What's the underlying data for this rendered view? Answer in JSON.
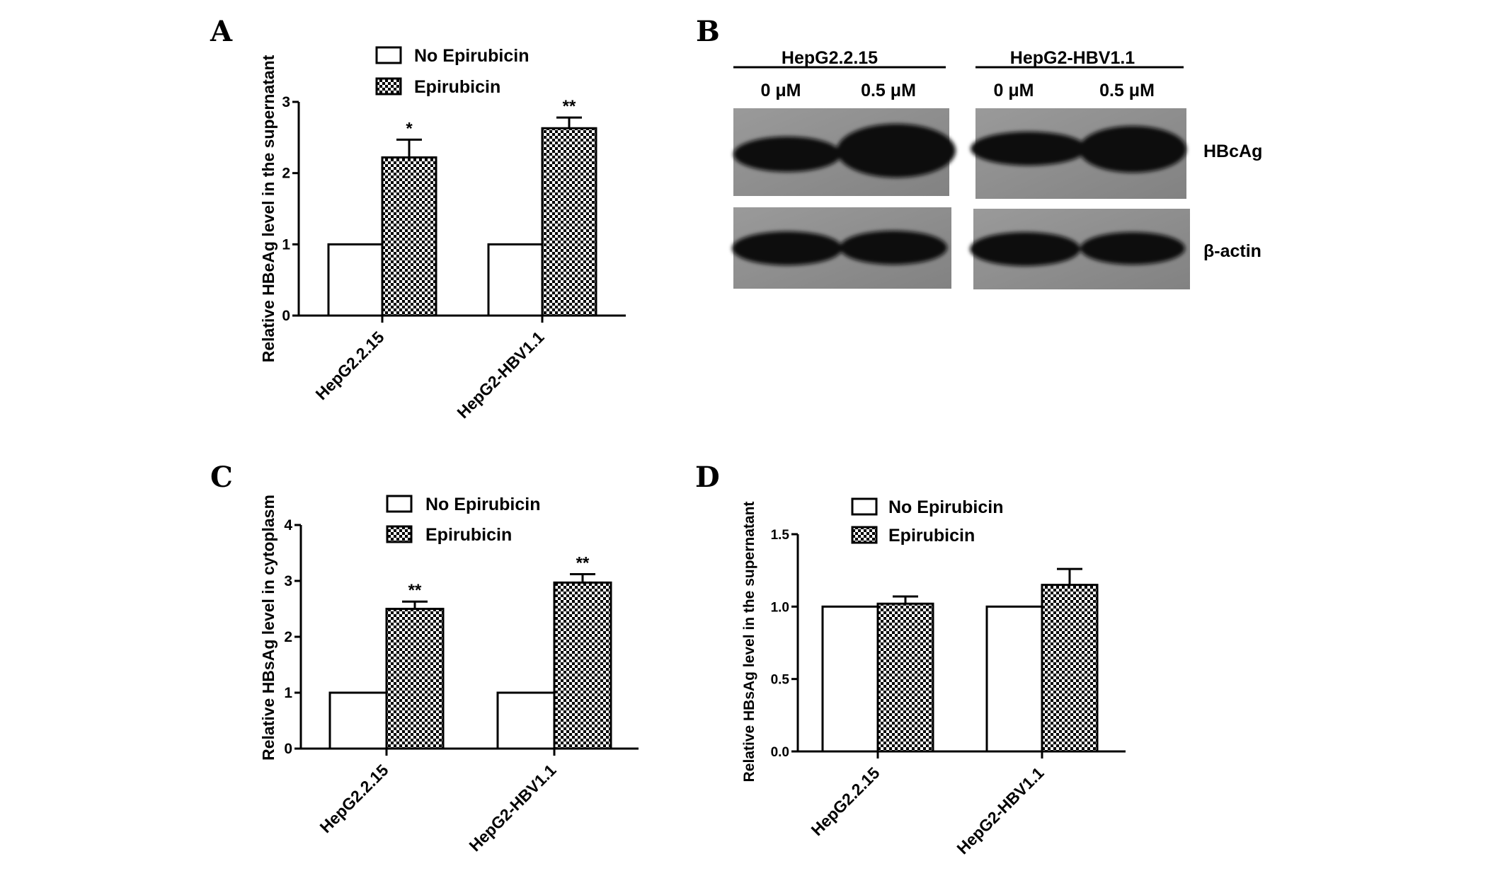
{
  "legend": {
    "control": "No Epirubicin",
    "treated": "Epirubicin"
  },
  "colors": {
    "ink": "#000000",
    "bar_fill_control": "#ffffff",
    "blot_background": "#8f8f8f",
    "blot_band": "#0c0c0c"
  },
  "chart_data": [
    {
      "panel": "A",
      "type": "bar",
      "ylabel": "Relative HBeAg level in the supernatant",
      "categories": [
        "HepG2.2.15",
        "HepG2-HBV1.1"
      ],
      "ylim": [
        0,
        3
      ],
      "yticks": [
        "0",
        "1",
        "2",
        "3"
      ],
      "series": [
        {
          "name": "No Epirubicin",
          "values": [
            1.0,
            1.0
          ]
        },
        {
          "name": "Epirubicin",
          "values": [
            2.22,
            2.63
          ],
          "errors": [
            0.25,
            0.15
          ]
        }
      ],
      "annotations": [
        "*",
        "**"
      ],
      "grid": false
    },
    {
      "panel": "C",
      "type": "bar",
      "ylabel": "Relative HBsAg level in cytoplasm",
      "categories": [
        "HepG2.2.15",
        "HepG2-HBV1.1"
      ],
      "ylim": [
        0,
        4
      ],
      "yticks": [
        "0",
        "1",
        "2",
        "3",
        "4"
      ],
      "series": [
        {
          "name": "No Epirubicin",
          "values": [
            1.0,
            1.0
          ]
        },
        {
          "name": "Epirubicin",
          "values": [
            2.5,
            2.97
          ],
          "errors": [
            0.13,
            0.15
          ]
        }
      ],
      "annotations": [
        "**",
        "**"
      ],
      "grid": false
    },
    {
      "panel": "D",
      "type": "bar",
      "ylabel": "Relative HBsAg level in the supernatant",
      "categories": [
        "HepG2.2.15",
        "HepG2-HBV1.1"
      ],
      "ylim": [
        0,
        1.5
      ],
      "yticks": [
        "0.0",
        "0.5",
        "1.0",
        "1.5"
      ],
      "series": [
        {
          "name": "No Epirubicin",
          "values": [
            1.0,
            1.0
          ]
        },
        {
          "name": "Epirubicin",
          "values": [
            1.02,
            1.15
          ],
          "errors": [
            0.05,
            0.11
          ]
        }
      ],
      "annotations": [
        "",
        ""
      ],
      "grid": false
    }
  ],
  "blot": {
    "panel": "B",
    "cell_lines": [
      "HepG2.2.15",
      "HepG2-HBV1.1"
    ],
    "lanes": [
      "0 μM",
      "0.5 μM",
      "0 μM",
      "0.5 μM"
    ],
    "rows": [
      "HBcAg",
      "β-actin"
    ]
  }
}
